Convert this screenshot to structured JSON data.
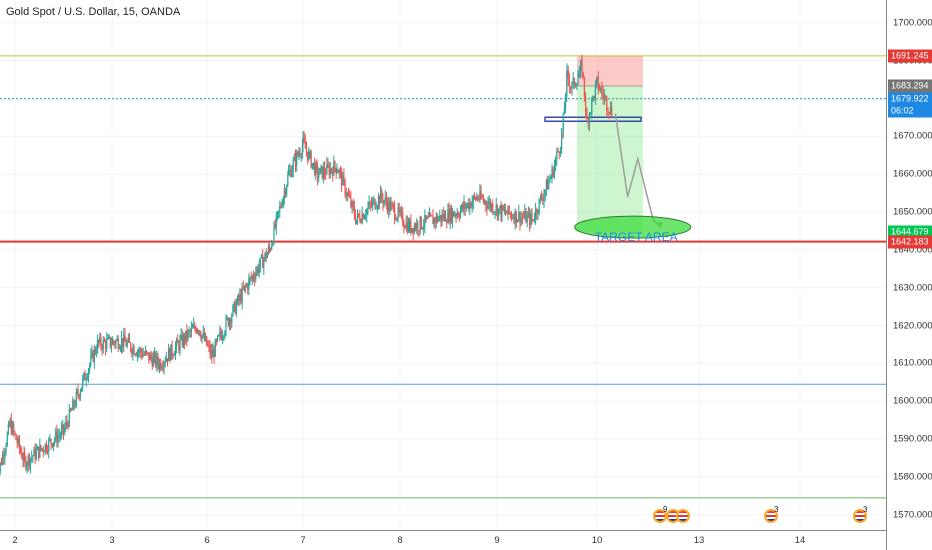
{
  "title": "Gold Spot / U.S. Dollar, 15, OANDA",
  "chart_data": {
    "type": "candlestick",
    "symbol": "XAUUSD",
    "ylim": [
      1566,
      1706
    ],
    "price_ticks": [
      1700,
      1690,
      1680,
      1670,
      1660,
      1650,
      1640,
      1630,
      1620,
      1610,
      1600,
      1590,
      1580,
      1570
    ],
    "price_tick_labels": [
      "1700.000",
      "1690.000",
      "1680.000",
      "1670.000",
      "1660.000",
      "1650.000",
      "1640.000",
      "1630.000",
      "1620.000",
      "1610.000",
      "1600.000",
      "1590.000",
      "1580.000",
      "1570.000"
    ],
    "time_ticks": [
      "2",
      "3",
      "6",
      "7",
      "8",
      "9",
      "10",
      "13",
      "14"
    ],
    "price_path": [
      [
        1.8,
        1578
      ],
      [
        1.95,
        1594
      ],
      [
        2.1,
        1584
      ],
      [
        2.3,
        1588
      ],
      [
        2.5,
        1592
      ],
      [
        2.65,
        1602
      ],
      [
        2.85,
        1615
      ],
      [
        3.1,
        1616
      ],
      [
        3.5,
        1610
      ],
      [
        3.9,
        1620
      ],
      [
        4.05,
        1612
      ],
      [
        4.15,
        1618
      ],
      [
        4.4,
        1630
      ],
      [
        4.65,
        1640
      ],
      [
        4.85,
        1660
      ],
      [
        5.0,
        1668
      ],
      [
        5.15,
        1660
      ],
      [
        5.35,
        1662
      ],
      [
        5.55,
        1648
      ],
      [
        5.8,
        1654
      ],
      [
        6.1,
        1646
      ],
      [
        6.35,
        1648
      ],
      [
        6.6,
        1650
      ],
      [
        6.8,
        1654
      ],
      [
        7.05,
        1650
      ],
      [
        7.35,
        1648
      ],
      [
        7.55,
        1660
      ],
      [
        7.65,
        1670
      ],
      [
        7.7,
        1686
      ],
      [
        7.75,
        1683
      ],
      [
        7.85,
        1688
      ],
      [
        7.9,
        1674
      ],
      [
        8.0,
        1684
      ],
      [
        8.15,
        1676
      ]
    ],
    "forecast_path": [
      [
        8.18,
        1676
      ],
      [
        8.3,
        1654
      ],
      [
        8.4,
        1664
      ],
      [
        8.55,
        1648
      ],
      [
        8.62,
        1646
      ]
    ],
    "up_color": "#26a69a",
    "down_color": "#ef5350",
    "horizontal_lines": [
      {
        "price": 1691.245,
        "color": "#c0ca33",
        "style": "solid"
      },
      {
        "price": 1679.922,
        "color": "#1e88e5",
        "style": "dotted"
      },
      {
        "price": 1642.183,
        "color": "#e53935",
        "style": "solid"
      },
      {
        "price": 1604.5,
        "color": "#5c9bd6",
        "style": "solid"
      },
      {
        "price": 1574.5,
        "color": "#66bb6a",
        "style": "solid"
      }
    ],
    "price_tags": [
      {
        "label": "1691.245",
        "price": 1691.245,
        "color": "#e53935"
      },
      {
        "label": "1683.294",
        "price": 1683.294,
        "color": "#757575"
      },
      {
        "label": "1679.922",
        "price": 1679.922,
        "color": "#1e88e5"
      },
      {
        "label": "06:02",
        "price": 1676.8,
        "color": "#1e88e5"
      },
      {
        "label": "1644.679",
        "price": 1644.679,
        "color": "#00c853"
      },
      {
        "label": "1642.183",
        "price": 1642.183,
        "color": "#e53935"
      }
    ],
    "short_position": {
      "entry": 1683.294,
      "stop": 1691.245,
      "target": 1644.679,
      "x_start": 7.8,
      "x_end": 8.45
    },
    "resistance_box_price": 1674.5,
    "target_annotation": {
      "text": "TARGET AREA",
      "price": 1646
    }
  },
  "events": [
    {
      "icon": "us-flag-icon",
      "count": "9",
      "x": 8.6
    },
    {
      "icon": "us-flag-icon",
      "count": "",
      "x": 8.75
    },
    {
      "icon": "us-flag-icon",
      "count": "",
      "x": 8.85
    },
    {
      "icon": "us-flag-icon",
      "count": "3",
      "x": 13.7
    },
    {
      "icon": "us-flag-icon",
      "count": "3",
      "x": 14.6
    }
  ]
}
